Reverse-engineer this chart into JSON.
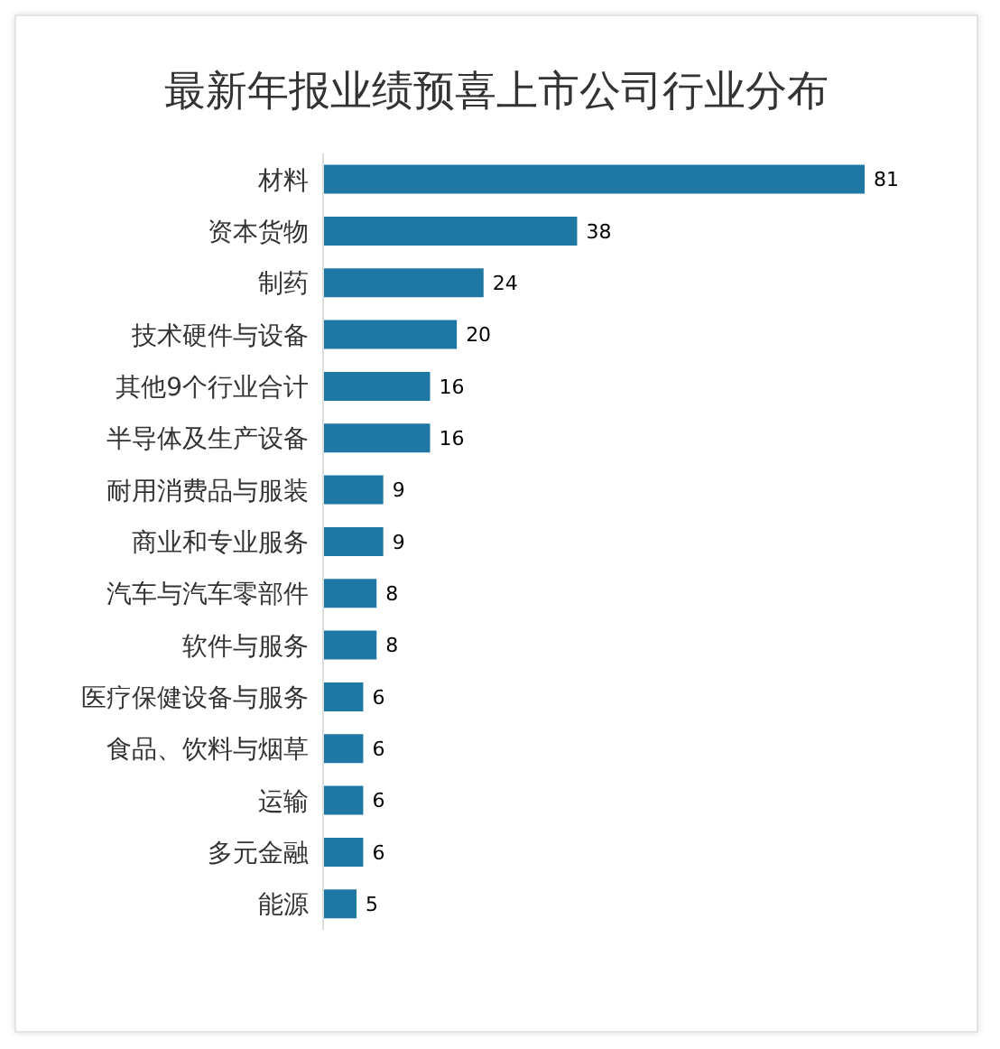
{
  "chart_data": {
    "type": "bar",
    "orientation": "horizontal",
    "title": "最新年报业绩预喜上市公司行业分布",
    "categories": [
      "材料",
      "资本货物",
      "制药",
      "技术硬件与设备",
      "其他9个行业合计",
      "半导体及生产设备",
      "耐用消费品与服装",
      "商业和专业服务",
      "汽车与汽车零部件",
      "软件与服务",
      "医疗保健设备与服务",
      "食品、饮料与烟草",
      "运输",
      "多元金融",
      "能源"
    ],
    "values": [
      81,
      38,
      24,
      20,
      16,
      16,
      9,
      9,
      8,
      8,
      6,
      6,
      6,
      6,
      5
    ],
    "color": "#1f78a4",
    "data_labels": true,
    "tick_labels": "y"
  }
}
